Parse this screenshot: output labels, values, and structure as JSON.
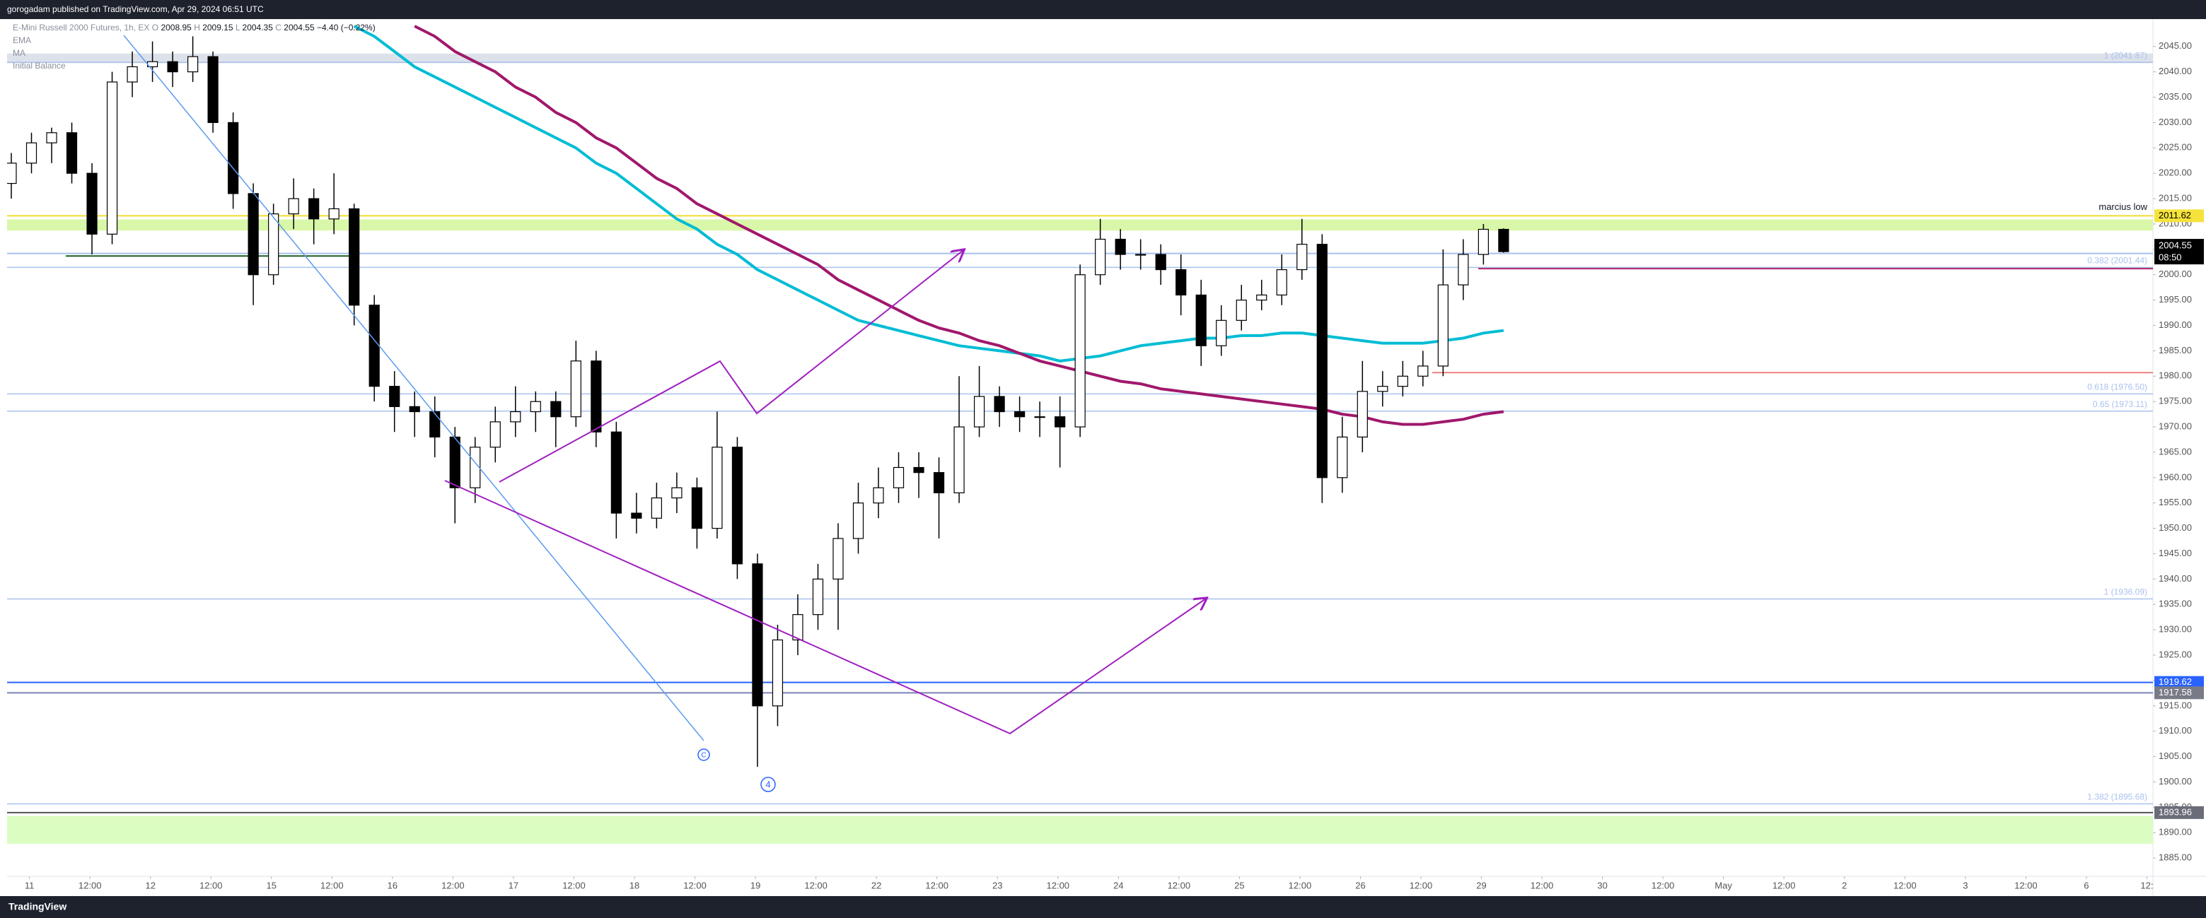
{
  "header": {
    "text": "gorogadam published on TradingView.com, Apr 29, 2024 06:51 UTC"
  },
  "footer": {
    "brand": "TradingView"
  },
  "chart_data": {
    "type": "candlestick",
    "symbol": "E-Mini Russell 2000 Futures, 1h, EX",
    "ohlc_prefixes": [
      "O",
      "H",
      "L",
      "C"
    ],
    "change": "−4.40 (−0.22%)",
    "extra_legend": "Initial Balance",
    "up_color": "#ffffff",
    "down_color": "#000000",
    "candles": [
      [
        2018,
        2024,
        2015,
        2022
      ],
      [
        2022,
        2028,
        2020,
        2026
      ],
      [
        2026,
        2029,
        2022,
        2028
      ],
      [
        2028,
        2030,
        2018,
        2020
      ],
      [
        2020,
        2022,
        2004,
        2008
      ],
      [
        2008,
        2040,
        2006,
        2038
      ],
      [
        2038,
        2044,
        2035,
        2041
      ],
      [
        2041,
        2046,
        2038,
        2042
      ],
      [
        2042,
        2044,
        2037,
        2040
      ],
      [
        2040,
        2047,
        2038,
        2043
      ],
      [
        2043,
        2044,
        2028,
        2030
      ],
      [
        2030,
        2032,
        2013,
        2016
      ],
      [
        2016,
        2018,
        1994,
        2000
      ],
      [
        2000,
        2014,
        1998,
        2012
      ],
      [
        2012,
        2019,
        2009,
        2015
      ],
      [
        2015,
        2017,
        2006,
        2011
      ],
      [
        2011,
        2020,
        2008,
        2013
      ],
      [
        2013,
        2014,
        1990,
        1994
      ],
      [
        1994,
        1996,
        1975,
        1978
      ],
      [
        1978,
        1981,
        1969,
        1974
      ],
      [
        1974,
        1977,
        1968,
        1973
      ],
      [
        1973,
        1976,
        1964,
        1968
      ],
      [
        1968,
        1970,
        1951,
        1958
      ],
      [
        1958,
        1968,
        1955,
        1966
      ],
      [
        1966,
        1974,
        1963,
        1971
      ],
      [
        1971,
        1978,
        1968,
        1973
      ],
      [
        1973,
        1977,
        1969,
        1975
      ],
      [
        1975,
        1977,
        1966,
        1972
      ],
      [
        1972,
        1987,
        1970,
        1983
      ],
      [
        1983,
        1985,
        1966,
        1969
      ],
      [
        1969,
        1971,
        1948,
        1953
      ],
      [
        1953,
        1957,
        1949,
        1952
      ],
      [
        1952,
        1959,
        1950,
        1956
      ],
      [
        1956,
        1961,
        1953,
        1958
      ],
      [
        1958,
        1960,
        1946,
        1950
      ],
      [
        1950,
        1973,
        1948,
        1966
      ],
      [
        1966,
        1968,
        1940,
        1943
      ],
      [
        1943,
        1945,
        1903,
        1915
      ],
      [
        1915,
        1931,
        1911,
        1928
      ],
      [
        1928,
        1937,
        1925,
        1933
      ],
      [
        1933,
        1943,
        1930,
        1940
      ],
      [
        1940,
        1951,
        1930,
        1948
      ],
      [
        1948,
        1959,
        1945,
        1955
      ],
      [
        1955,
        1962,
        1952,
        1958
      ],
      [
        1958,
        1965,
        1955,
        1962
      ],
      [
        1962,
        1965,
        1956,
        1961
      ],
      [
        1961,
        1964,
        1948,
        1957
      ],
      [
        1957,
        1980,
        1955,
        1970
      ],
      [
        1970,
        1982,
        1968,
        1976
      ],
      [
        1976,
        1978,
        1970,
        1973
      ],
      [
        1973,
        1976,
        1969,
        1972
      ],
      [
        1972,
        1975,
        1968,
        1972
      ],
      [
        1972,
        1976,
        1962,
        1970
      ],
      [
        1970,
        2002,
        1968,
        2000
      ],
      [
        2000,
        2011,
        1998,
        2007
      ],
      [
        2007,
        2009,
        2001,
        2004
      ],
      [
        2004,
        2007,
        2001,
        2004
      ],
      [
        2004,
        2006,
        1998,
        2001
      ],
      [
        2001,
        2004,
        1992,
        1996
      ],
      [
        1996,
        1999,
        1982,
        1986
      ],
      [
        1986,
        1994,
        1984,
        1991
      ],
      [
        1991,
        1998,
        1989,
        1995
      ],
      [
        1995,
        1999,
        1993,
        1996
      ],
      [
        1996,
        2004,
        1994,
        2001
      ],
      [
        2001,
        2011,
        1999,
        2006
      ],
      [
        2006,
        2008,
        1955,
        1960
      ],
      [
        1960,
        1972,
        1957,
        1968
      ],
      [
        1968,
        1983,
        1965,
        1977
      ],
      [
        1977,
        1981,
        1974,
        1978
      ],
      [
        1978,
        1983,
        1976,
        1980
      ],
      [
        1980,
        1985,
        1978,
        1982
      ],
      [
        1982,
        2005,
        1980,
        1998
      ],
      [
        1998,
        2007,
        1995,
        2004
      ],
      [
        2004,
        2010,
        2002,
        2008.95
      ],
      [
        2008.95,
        2009.15,
        2004.35,
        2004.55
      ]
    ],
    "series": [
      {
        "name": "EMA",
        "color": "#00bcd4",
        "values": [
          null,
          null,
          null,
          null,
          null,
          null,
          null,
          null,
          null,
          null,
          null,
          null,
          null,
          null,
          null,
          null,
          null,
          2049,
          2047,
          2044,
          2041,
          2039,
          2037,
          2035,
          2033,
          2031,
          2029,
          2027,
          2025,
          2022,
          2020,
          2017,
          2014,
          2011,
          2009,
          2006,
          2004,
          2001,
          1999,
          1997,
          1995,
          1993,
          1991,
          1990,
          1989,
          1988,
          1987,
          1986,
          1985.5,
          1985,
          1984.5,
          1984,
          1983,
          1983.5,
          1984,
          1985,
          1986,
          1986.5,
          1987,
          1987.5,
          1987.5,
          1988,
          1988,
          1988.5,
          1988.5,
          1988,
          1987.5,
          1987,
          1986.5,
          1986.5,
          1986.5,
          1987,
          1987.5,
          1988.5,
          1989
        ]
      },
      {
        "name": "MA",
        "color": "#a0186b",
        "values": [
          null,
          null,
          null,
          null,
          null,
          null,
          null,
          null,
          null,
          null,
          null,
          null,
          null,
          null,
          null,
          null,
          null,
          null,
          null,
          null,
          2049,
          2047,
          2044,
          2042,
          2040,
          2037,
          2035,
          2032,
          2030,
          2027,
          2025,
          2022,
          2019,
          2017,
          2014,
          2012,
          2010,
          2008,
          2006,
          2004,
          2002,
          1999,
          1997,
          1995,
          1993,
          1991,
          1989.5,
          1988.5,
          1987,
          1986,
          1984.5,
          1983,
          1982,
          1981,
          1980,
          1979,
          1978.5,
          1977.5,
          1977,
          1976.5,
          1976,
          1975.5,
          1975,
          1974.5,
          1974,
          1973.5,
          1972.5,
          1972,
          1971,
          1970.5,
          1970.5,
          1971,
          1971.5,
          1972.5,
          1973
        ]
      }
    ],
    "xlim": [
      -0.37,
      35.1
    ],
    "xticks": [
      {
        "value": 0,
        "label": "11"
      },
      {
        "value": 1,
        "label": "12:00"
      },
      {
        "value": 2,
        "label": "12"
      },
      {
        "value": 3,
        "label": "12:00"
      },
      {
        "value": 4,
        "label": "15"
      },
      {
        "value": 5,
        "label": "12:00"
      },
      {
        "value": 6,
        "label": "16"
      },
      {
        "value": 7,
        "label": "12:00"
      },
      {
        "value": 8,
        "label": "17"
      },
      {
        "value": 9,
        "label": "12:00"
      },
      {
        "value": 10,
        "label": "18"
      },
      {
        "value": 11,
        "label": "12:00"
      },
      {
        "value": 12,
        "label": "19"
      },
      {
        "value": 13,
        "label": "12:00"
      },
      {
        "value": 14,
        "label": "22"
      },
      {
        "value": 15,
        "label": "12:00"
      },
      {
        "value": 16,
        "label": "23"
      },
      {
        "value": 17,
        "label": "12:00"
      },
      {
        "value": 18,
        "label": "24"
      },
      {
        "value": 19,
        "label": "12:00"
      },
      {
        "value": 20,
        "label": "25"
      },
      {
        "value": 21,
        "label": "12:00"
      },
      {
        "value": 22,
        "label": "26"
      },
      {
        "value": 23,
        "label": "12:00"
      },
      {
        "value": 24,
        "label": "29"
      },
      {
        "value": 25,
        "label": "12:00"
      },
      {
        "value": 26,
        "label": "30"
      },
      {
        "value": 27,
        "label": "12:00"
      },
      {
        "value": 28,
        "label": "May"
      },
      {
        "value": 29,
        "label": "12:00"
      },
      {
        "value": 30,
        "label": "2"
      },
      {
        "value": 31,
        "label": "12:00"
      },
      {
        "value": 32,
        "label": "3"
      },
      {
        "value": 33,
        "label": "12:00"
      },
      {
        "value": 34,
        "label": "6"
      },
      {
        "value": 35,
        "label": "12:"
      }
    ],
    "ylim": [
      1881.4,
      2050.4
    ],
    "yticks": [
      {
        "value": 1885,
        "label": "1885.00"
      },
      {
        "value": 1890,
        "label": "1890.00"
      },
      {
        "value": 1895,
        "label": "1895.00"
      },
      {
        "value": 1900,
        "label": "1900.00"
      },
      {
        "value": 1905,
        "label": "1905.00"
      },
      {
        "value": 1910,
        "label": "1910.00"
      },
      {
        "value": 1915,
        "label": "1915.00"
      },
      {
        "value": 1920,
        "label": "1920.00"
      },
      {
        "value": 1925,
        "label": "1925.00"
      },
      {
        "value": 1930,
        "label": "1930.00"
      },
      {
        "value": 1935,
        "label": "1935.00"
      },
      {
        "value": 1940,
        "label": "1940.00"
      },
      {
        "value": 1945,
        "label": "1945.00"
      },
      {
        "value": 1950,
        "label": "1950.00"
      },
      {
        "value": 1955,
        "label": "1955.00"
      },
      {
        "value": 1960,
        "label": "1960.00"
      },
      {
        "value": 1965,
        "label": "1965.00"
      },
      {
        "value": 1970,
        "label": "1970.00"
      },
      {
        "value": 1975,
        "label": "1975.00"
      },
      {
        "value": 1980,
        "label": "1980.00"
      },
      {
        "value": 1985,
        "label": "1985.00"
      },
      {
        "value": 1990,
        "label": "1990.00"
      },
      {
        "value": 1995,
        "label": "1995.00"
      },
      {
        "value": 2000,
        "label": "2000.00"
      },
      {
        "value": 2005,
        "label": "2005.00"
      },
      {
        "value": 2010,
        "label": "2010.00"
      },
      {
        "value": 2015,
        "label": "2015.00"
      },
      {
        "value": 2020,
        "label": "2020.00"
      },
      {
        "value": 2025,
        "label": "2025.00"
      },
      {
        "value": 2030,
        "label": "2030.00"
      },
      {
        "value": 2035,
        "label": "2035.00"
      },
      {
        "value": 2040,
        "label": "2040.00"
      },
      {
        "value": 2045,
        "label": "2045.00"
      }
    ],
    "zones": [
      {
        "from": 2041.7,
        "to": 2043.6,
        "color": "#dde1ea"
      },
      {
        "from": 2008.7,
        "to": 2010.9,
        "color": "#d9f7a8"
      },
      {
        "from": 1887.8,
        "to": 1893.3,
        "color": "#dcfdc2"
      }
    ],
    "fib_color": "#a9c1ee",
    "fib_levels": [
      {
        "label": "1 (2041.87)",
        "value": 2041.87
      },
      {
        "label": "0.382 (2001.44)",
        "value": 2001.44
      },
      {
        "label": "0.618 (1976.50)",
        "value": 1976.5
      },
      {
        "label": "0.65 (1973.11)",
        "value": 1973.11
      },
      {
        "label": "1 (1936.09)",
        "value": 1936.09
      },
      {
        "label": "1.382 (1895.68)",
        "value": 1895.68
      }
    ],
    "levels": [
      {
        "value": 2011.62,
        "color": "#f2dc2c",
        "badge_color": "#f5e33b",
        "badge_text": "#000000",
        "note": "marcius low"
      },
      {
        "value": 2004.2,
        "color": "#a9c1ee"
      },
      {
        "value": 1919.62,
        "color": "#2962ff",
        "badge_color": "#2962ff",
        "badge_text": "#ffffff"
      },
      {
        "value": 1917.58,
        "color": "#7a83b8",
        "badge_color": "#787b86",
        "badge_text": "#ffffff"
      },
      {
        "value": 1893.96,
        "color": "#555555",
        "badge_color": "#6a6d78",
        "badge_text": "#ffffff"
      }
    ],
    "rays": [
      {
        "value": 2001.2,
        "color": "#b0246a"
      },
      {
        "value": 1980.7,
        "color": "#ef8080"
      },
      {
        "value": 2003.7,
        "color": "#1b5e20"
      }
    ],
    "last_price": {
      "value": 2004.55,
      "countdown": "08:50"
    },
    "annotations": [
      "C",
      "4"
    ]
  }
}
